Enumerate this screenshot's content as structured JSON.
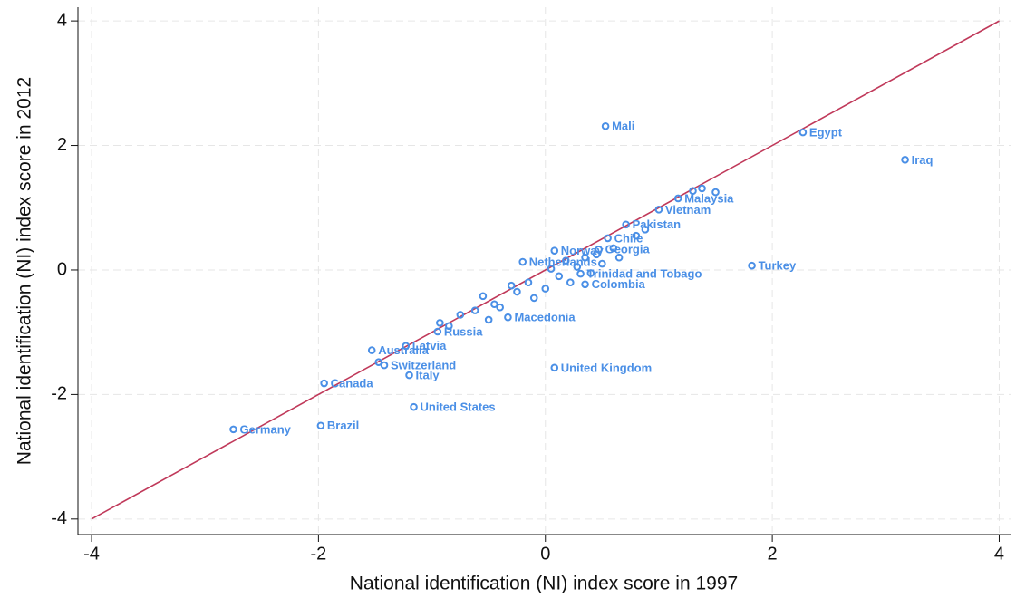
{
  "chart_data": {
    "type": "scatter",
    "x_label": "National identification (NI) index score in 1997",
    "y_label": "National identification (NI) index score in 2012",
    "xlim": [
      -4.12,
      4.1
    ],
    "ylim": [
      -4.25,
      4.22
    ],
    "xticks": [
      -4,
      -2,
      0,
      2,
      4
    ],
    "yticks": [
      -4,
      -2,
      0,
      2,
      4
    ],
    "grid": true,
    "color": "#4a8fe6",
    "reference_line": {
      "x": [
        -4,
        4
      ],
      "y": [
        -4,
        4
      ],
      "color": "#c0395a"
    },
    "labels": [
      "Mali",
      "Egypt",
      "Iraq",
      "Turkey",
      "United Kingdom",
      "United States",
      "Germany",
      "Brazil",
      "Canada",
      "Australia",
      "Latvia",
      "Italy",
      "Switzerland",
      "Russia",
      "Malaysia",
      "Vietnam",
      "Pakistan",
      "Chile",
      "Netherlands",
      "Norway",
      "Georgia",
      "Trinidad and Tobago",
      "Colombia",
      "Macedonia",
      null,
      null,
      null,
      null,
      null,
      null,
      null,
      null,
      null,
      null,
      null,
      null,
      null,
      null,
      null,
      null,
      null,
      null,
      null,
      null,
      null,
      null,
      null,
      null,
      null,
      null,
      null,
      null,
      null,
      null
    ],
    "x": [
      0.53,
      2.27,
      3.17,
      1.82,
      0.08,
      -1.16,
      -2.75,
      -1.98,
      -1.95,
      -1.53,
      -1.23,
      -1.2,
      -1.42,
      -0.95,
      1.17,
      1.0,
      0.71,
      0.55,
      -0.2,
      0.08,
      0.47,
      0.31,
      0.35,
      -0.33,
      -1.47,
      -0.93,
      -0.85,
      -0.75,
      -0.62,
      -0.55,
      -0.5,
      -0.45,
      -0.4,
      -0.3,
      -0.25,
      -0.15,
      -0.1,
      0.0,
      0.05,
      0.12,
      0.18,
      0.22,
      0.28,
      0.35,
      0.4,
      0.45,
      0.5,
      0.6,
      0.65,
      0.8,
      0.88,
      1.3,
      1.38,
      1.5
    ],
    "y": [
      2.31,
      2.21,
      1.77,
      0.07,
      -1.57,
      -2.2,
      -2.56,
      -2.5,
      -1.82,
      -1.29,
      -1.22,
      -1.69,
      -1.53,
      -0.99,
      1.15,
      0.97,
      0.73,
      0.51,
      0.13,
      0.31,
      0.33,
      -0.06,
      -0.23,
      -0.76,
      -1.48,
      -0.85,
      -0.9,
      -0.72,
      -0.65,
      -0.42,
      -0.8,
      -0.55,
      -0.6,
      -0.25,
      -0.35,
      -0.2,
      -0.45,
      -0.3,
      0.02,
      -0.1,
      0.15,
      -0.2,
      0.05,
      0.2,
      -0.05,
      0.25,
      0.1,
      0.35,
      0.2,
      0.55,
      0.65,
      1.27,
      1.31,
      1.25
    ]
  }
}
